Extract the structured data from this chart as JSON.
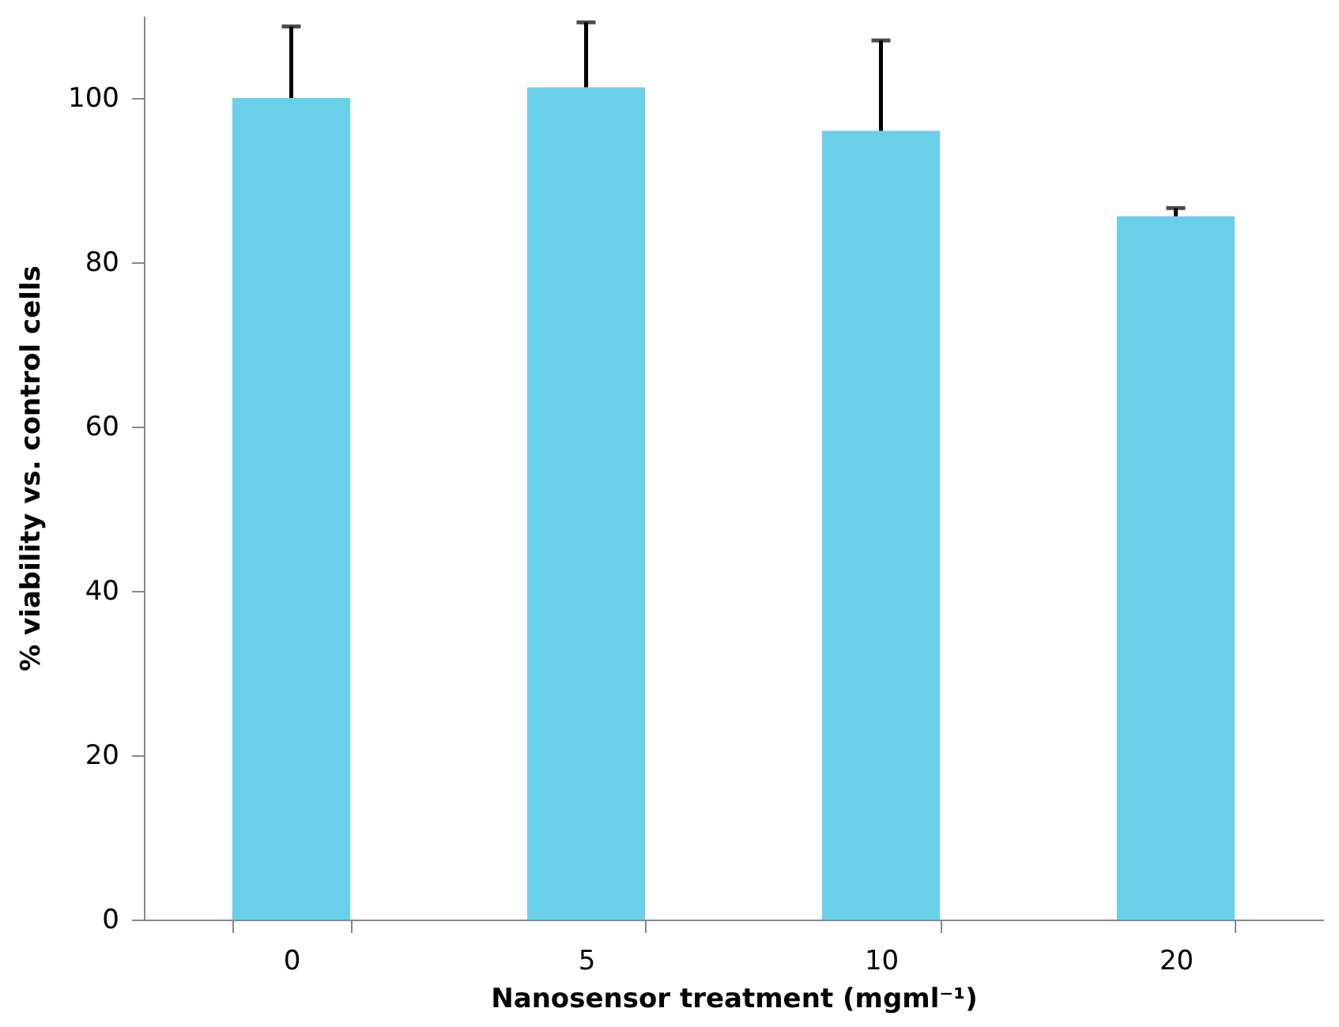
{
  "chart_data": {
    "type": "bar",
    "xlabel": "Nanosensor treatment (mgml⁻¹)",
    "ylabel": "% viability vs. control cells",
    "categories": [
      "0",
      "5",
      "10",
      "20"
    ],
    "series": [
      {
        "color": "#6ad0ea",
        "values": [
          100,
          101.3,
          96.0,
          85.6
        ],
        "errors": [
          [
            100,
            108.7
          ],
          [
            101.3,
            109.2
          ],
          [
            96.0,
            107.0
          ],
          [
            85.6,
            86.6
          ]
        ]
      }
    ],
    "ylim": [
      0,
      110
    ],
    "yticks": [
      0,
      20,
      40,
      60,
      80,
      100
    ],
    "grid": false
  }
}
